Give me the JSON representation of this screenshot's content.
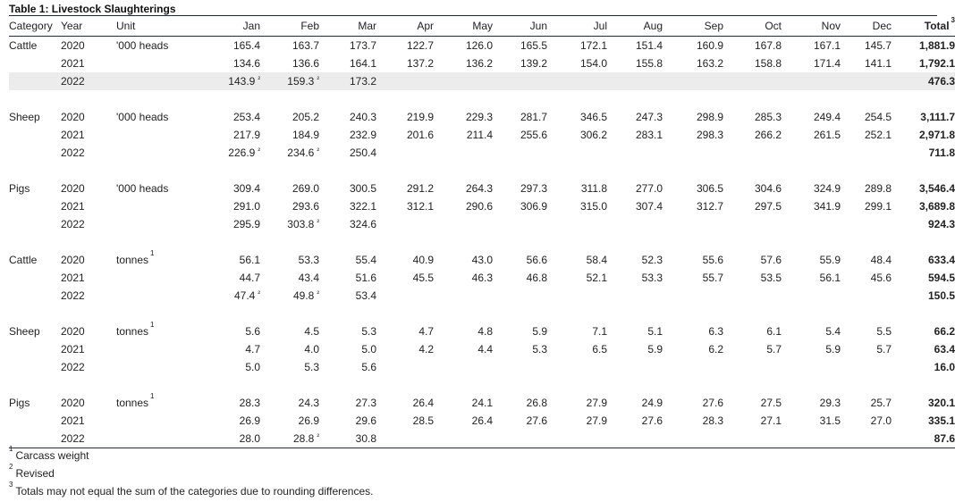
{
  "title": "Table 1: Livestock Slaughterings",
  "headers": {
    "category": "Category",
    "year": "Year",
    "unit": "Unit",
    "months": [
      "Jan",
      "Feb",
      "Mar",
      "Apr",
      "May",
      "Jun",
      "Jul",
      "Aug",
      "Sep",
      "Oct",
      "Nov",
      "Dec"
    ],
    "total": "Total",
    "total_sup": "3"
  },
  "revised_mark": "²",
  "groups": [
    {
      "category": "Cattle",
      "unit": "'000 heads",
      "unit_sup": "",
      "rows": [
        {
          "year": "2020",
          "values": [
            "165.4",
            "163.7",
            "173.7",
            "122.7",
            "126.0",
            "165.5",
            "172.1",
            "151.4",
            "160.9",
            "167.8",
            "167.1",
            "145.7"
          ],
          "revised": [
            false,
            false,
            false,
            false,
            false,
            false,
            false,
            false,
            false,
            false,
            false,
            false
          ],
          "total": "1,881.9"
        },
        {
          "year": "2021",
          "values": [
            "134.6",
            "136.6",
            "164.1",
            "137.2",
            "136.2",
            "139.2",
            "154.0",
            "155.8",
            "163.2",
            "158.8",
            "171.4",
            "141.1"
          ],
          "revised": [
            false,
            false,
            false,
            false,
            false,
            false,
            false,
            false,
            false,
            false,
            false,
            false
          ],
          "total": "1,792.1"
        },
        {
          "year": "2022",
          "values": [
            "143.9",
            "159.3",
            "173.2",
            "",
            "",
            "",
            "",
            "",
            "",
            "",
            "",
            ""
          ],
          "revised": [
            true,
            true,
            false,
            false,
            false,
            false,
            false,
            false,
            false,
            false,
            false,
            false
          ],
          "total": "476.3",
          "shaded": true
        }
      ]
    },
    {
      "category": "Sheep",
      "unit": "'000 heads",
      "unit_sup": "",
      "rows": [
        {
          "year": "2020",
          "values": [
            "253.4",
            "205.2",
            "240.3",
            "219.9",
            "229.3",
            "281.7",
            "346.5",
            "247.3",
            "298.9",
            "285.3",
            "249.4",
            "254.5"
          ],
          "revised": [
            false,
            false,
            false,
            false,
            false,
            false,
            false,
            false,
            false,
            false,
            false,
            false
          ],
          "total": "3,111.7"
        },
        {
          "year": "2021",
          "values": [
            "217.9",
            "184.9",
            "232.9",
            "201.6",
            "211.4",
            "255.6",
            "306.2",
            "283.1",
            "298.3",
            "266.2",
            "261.5",
            "252.1"
          ],
          "revised": [
            false,
            false,
            false,
            false,
            false,
            false,
            false,
            false,
            false,
            false,
            false,
            false
          ],
          "total": "2,971.8"
        },
        {
          "year": "2022",
          "values": [
            "226.9",
            "234.6",
            "250.4",
            "",
            "",
            "",
            "",
            "",
            "",
            "",
            "",
            ""
          ],
          "revised": [
            true,
            true,
            false,
            false,
            false,
            false,
            false,
            false,
            false,
            false,
            false,
            false
          ],
          "total": "711.8"
        }
      ]
    },
    {
      "category": "Pigs",
      "unit": "'000 heads",
      "unit_sup": "",
      "rows": [
        {
          "year": "2020",
          "values": [
            "309.4",
            "269.0",
            "300.5",
            "291.2",
            "264.3",
            "297.3",
            "311.8",
            "277.0",
            "306.5",
            "304.6",
            "324.9",
            "289.8"
          ],
          "revised": [
            false,
            false,
            false,
            false,
            false,
            false,
            false,
            false,
            false,
            false,
            false,
            false
          ],
          "total": "3,546.4"
        },
        {
          "year": "2021",
          "values": [
            "291.0",
            "293.6",
            "322.1",
            "312.1",
            "290.6",
            "306.9",
            "315.0",
            "307.4",
            "312.7",
            "297.5",
            "341.9",
            "299.1"
          ],
          "revised": [
            false,
            false,
            false,
            false,
            false,
            false,
            false,
            false,
            false,
            false,
            false,
            false
          ],
          "total": "3,689.8"
        },
        {
          "year": "2022",
          "values": [
            "295.9",
            "303.8",
            "324.6",
            "",
            "",
            "",
            "",
            "",
            "",
            "",
            "",
            ""
          ],
          "revised": [
            false,
            true,
            false,
            false,
            false,
            false,
            false,
            false,
            false,
            false,
            false,
            false
          ],
          "total": "924.3"
        }
      ]
    },
    {
      "category": "Cattle",
      "unit": "tonnes",
      "unit_sup": "1",
      "rows": [
        {
          "year": "2020",
          "values": [
            "56.1",
            "53.3",
            "55.4",
            "40.9",
            "43.0",
            "56.6",
            "58.4",
            "52.3",
            "55.6",
            "57.6",
            "55.9",
            "48.4"
          ],
          "revised": [
            false,
            false,
            false,
            false,
            false,
            false,
            false,
            false,
            false,
            false,
            false,
            false
          ],
          "total": "633.4"
        },
        {
          "year": "2021",
          "values": [
            "44.7",
            "43.4",
            "51.6",
            "45.5",
            "46.3",
            "46.8",
            "52.1",
            "53.3",
            "55.7",
            "53.5",
            "56.1",
            "45.6"
          ],
          "revised": [
            false,
            false,
            false,
            false,
            false,
            false,
            false,
            false,
            false,
            false,
            false,
            false
          ],
          "total": "594.5"
        },
        {
          "year": "2022",
          "values": [
            "47.4",
            "49.8",
            "53.4",
            "",
            "",
            "",
            "",
            "",
            "",
            "",
            "",
            ""
          ],
          "revised": [
            true,
            true,
            false,
            false,
            false,
            false,
            false,
            false,
            false,
            false,
            false,
            false
          ],
          "total": "150.5"
        }
      ]
    },
    {
      "category": "Sheep",
      "unit": "tonnes",
      "unit_sup": "1",
      "rows": [
        {
          "year": "2020",
          "values": [
            "5.6",
            "4.5",
            "5.3",
            "4.7",
            "4.8",
            "5.9",
            "7.1",
            "5.1",
            "6.3",
            "6.1",
            "5.4",
            "5.5"
          ],
          "revised": [
            false,
            false,
            false,
            false,
            false,
            false,
            false,
            false,
            false,
            false,
            false,
            false
          ],
          "total": "66.2"
        },
        {
          "year": "2021",
          "values": [
            "4.7",
            "4.0",
            "5.0",
            "4.2",
            "4.4",
            "5.3",
            "6.5",
            "5.9",
            "6.2",
            "5.7",
            "5.9",
            "5.7"
          ],
          "revised": [
            false,
            false,
            false,
            false,
            false,
            false,
            false,
            false,
            false,
            false,
            false,
            false
          ],
          "total": "63.4"
        },
        {
          "year": "2022",
          "values": [
            "5.0",
            "5.3",
            "5.6",
            "",
            "",
            "",
            "",
            "",
            "",
            "",
            "",
            ""
          ],
          "revised": [
            false,
            false,
            false,
            false,
            false,
            false,
            false,
            false,
            false,
            false,
            false,
            false
          ],
          "total": "16.0"
        }
      ]
    },
    {
      "category": "Pigs",
      "unit": "tonnes",
      "unit_sup": "1",
      "rows": [
        {
          "year": "2020",
          "values": [
            "28.3",
            "24.3",
            "27.3",
            "26.4",
            "24.1",
            "26.8",
            "27.9",
            "24.9",
            "27.6",
            "27.5",
            "29.3",
            "25.7"
          ],
          "revised": [
            false,
            false,
            false,
            false,
            false,
            false,
            false,
            false,
            false,
            false,
            false,
            false
          ],
          "total": "320.1"
        },
        {
          "year": "2021",
          "values": [
            "26.9",
            "26.9",
            "29.6",
            "28.5",
            "26.4",
            "27.6",
            "27.9",
            "27.6",
            "28.3",
            "27.1",
            "31.5",
            "27.0"
          ],
          "revised": [
            false,
            false,
            false,
            false,
            false,
            false,
            false,
            false,
            false,
            false,
            false,
            false
          ],
          "total": "335.1"
        },
        {
          "year": "2022",
          "values": [
            "28.0",
            "28.8",
            "30.8",
            "",
            "",
            "",
            "",
            "",
            "",
            "",
            "",
            ""
          ],
          "revised": [
            false,
            true,
            false,
            false,
            false,
            false,
            false,
            false,
            false,
            false,
            false,
            false
          ],
          "total": "87.6"
        }
      ]
    }
  ],
  "footnotes": [
    {
      "mark": "1",
      "text": "Carcass weight"
    },
    {
      "mark": "2",
      "text": "Revised"
    },
    {
      "mark": "3",
      "text": "Totals may not equal the sum of the categories due to rounding differences."
    }
  ]
}
